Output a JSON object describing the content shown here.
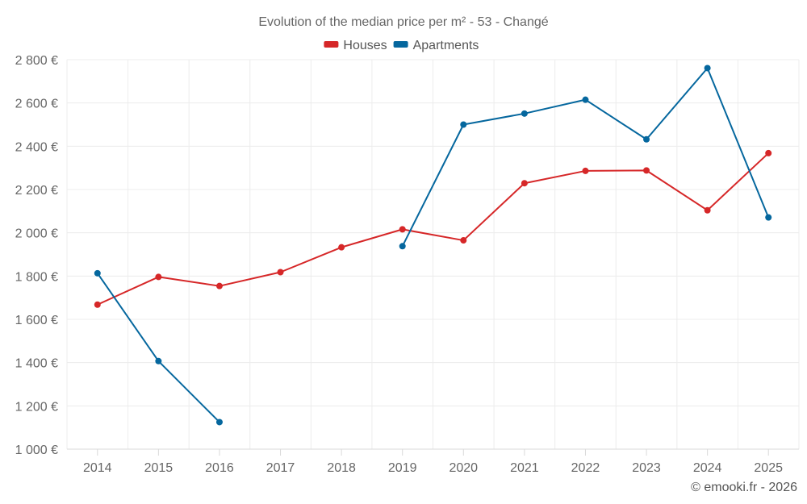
{
  "chart_data": {
    "type": "line",
    "title": "Evolution of the median price per m² - 53 - Changé",
    "categories": [
      "2014",
      "2015",
      "2016",
      "2017",
      "2018",
      "2019",
      "2020",
      "2021",
      "2022",
      "2023",
      "2024",
      "2025"
    ],
    "ylim": [
      1000,
      2800
    ],
    "yticks": [
      1000,
      1200,
      1400,
      1600,
      1800,
      2000,
      2200,
      2400,
      2600,
      2800
    ],
    "ytick_labels": [
      "1 000 €",
      "1 200 €",
      "1 400 €",
      "1 600 €",
      "1 800 €",
      "2 000 €",
      "2 200 €",
      "2 400 €",
      "2 600 €",
      "2 800 €"
    ],
    "series": [
      {
        "name": "Houses",
        "color": "#d62728",
        "values": [
          1668,
          1796,
          1754,
          1818,
          1933,
          2016,
          1965,
          2229,
          2286,
          2288,
          2104,
          2368
        ]
      },
      {
        "name": "Apartments",
        "color": "#05679e",
        "values": [
          1813,
          1407,
          1125,
          null,
          null,
          1938,
          2500,
          2551,
          2615,
          2432,
          2761,
          2071
        ]
      }
    ],
    "legend_position": "top-center",
    "grid": true
  },
  "credit": "© emooki.fr - 2026"
}
